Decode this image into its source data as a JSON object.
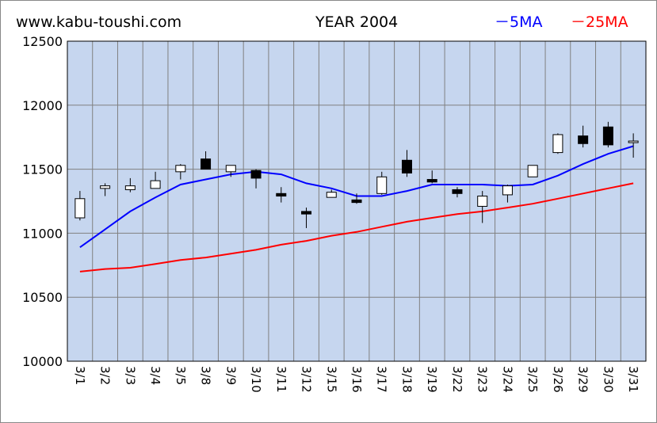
{
  "header": {
    "site": "www.kabu-toushi.com",
    "title": "YEAR 2004",
    "legend_5ma": "－5MA",
    "legend_25ma": "－25MA"
  },
  "colors": {
    "plot_background": "#c6d6ef",
    "gridline": "#808080",
    "ma5": "#0000ff",
    "ma25": "#ff0000",
    "up_candle": "#ffffff",
    "down_candle": "#000000"
  },
  "chart_data": {
    "type": "candlestick",
    "title": "YEAR 2004",
    "categories": [
      "3/1",
      "3/2",
      "3/3",
      "3/4",
      "3/5",
      "3/8",
      "3/9",
      "3/10",
      "3/11",
      "3/12",
      "3/15",
      "3/16",
      "3/17",
      "3/18",
      "3/19",
      "3/22",
      "3/23",
      "3/24",
      "3/25",
      "3/26",
      "3/29",
      "3/30",
      "3/31"
    ],
    "ylim": [
      10000,
      12500
    ],
    "yticks": [
      10000,
      10500,
      11000,
      11500,
      12000,
      12500
    ],
    "grid": true,
    "legend_position": "top-right",
    "candles": [
      {
        "open": 11120,
        "high": 11330,
        "low": 11100,
        "close": 11270
      },
      {
        "open": 11350,
        "high": 11390,
        "low": 11290,
        "close": 11370
      },
      {
        "open": 11340,
        "high": 11430,
        "low": 11320,
        "close": 11370
      },
      {
        "open": 11350,
        "high": 11480,
        "low": 11350,
        "close": 11410
      },
      {
        "open": 11480,
        "high": 11540,
        "low": 11420,
        "close": 11530
      },
      {
        "open": 11580,
        "high": 11640,
        "low": 11500,
        "close": 11500
      },
      {
        "open": 11480,
        "high": 11530,
        "low": 11440,
        "close": 11530
      },
      {
        "open": 11490,
        "high": 11500,
        "low": 11350,
        "close": 11430
      },
      {
        "open": 11310,
        "high": 11360,
        "low": 11240,
        "close": 11290
      },
      {
        "open": 11170,
        "high": 11200,
        "low": 11040,
        "close": 11150
      },
      {
        "open": 11280,
        "high": 11340,
        "low": 11280,
        "close": 11320
      },
      {
        "open": 11260,
        "high": 11310,
        "low": 11230,
        "close": 11240
      },
      {
        "open": 11310,
        "high": 11480,
        "low": 11300,
        "close": 11440
      },
      {
        "open": 11570,
        "high": 11650,
        "low": 11440,
        "close": 11470
      },
      {
        "open": 11420,
        "high": 11490,
        "low": 11390,
        "close": 11400
      },
      {
        "open": 11340,
        "high": 11360,
        "low": 11280,
        "close": 11310
      },
      {
        "open": 11210,
        "high": 11330,
        "low": 11080,
        "close": 11290
      },
      {
        "open": 11300,
        "high": 11380,
        "low": 11240,
        "close": 11370
      },
      {
        "open": 11440,
        "high": 11530,
        "low": 11440,
        "close": 11530
      },
      {
        "open": 11630,
        "high": 11780,
        "low": 11620,
        "close": 11770
      },
      {
        "open": 11760,
        "high": 11840,
        "low": 11670,
        "close": 11700
      },
      {
        "open": 11830,
        "high": 11870,
        "low": 11670,
        "close": 11690
      },
      {
        "open": 11710,
        "high": 11780,
        "low": 11590,
        "close": 11720
      }
    ],
    "series": [
      {
        "name": "5MA",
        "color": "#0000ff",
        "values": [
          10890,
          11030,
          11170,
          11280,
          11380,
          11420,
          11460,
          11480,
          11460,
          11390,
          11350,
          11290,
          11290,
          11330,
          11380,
          11380,
          11380,
          11370,
          11380,
          11450,
          11540,
          11620,
          11680
        ]
      },
      {
        "name": "25MA",
        "color": "#ff0000",
        "values": [
          10700,
          10720,
          10730,
          10760,
          10790,
          10810,
          10840,
          10870,
          10910,
          10940,
          10980,
          11010,
          11050,
          11090,
          11120,
          11150,
          11170,
          11200,
          11230,
          11270,
          11310,
          11350,
          11390
        ]
      }
    ]
  }
}
